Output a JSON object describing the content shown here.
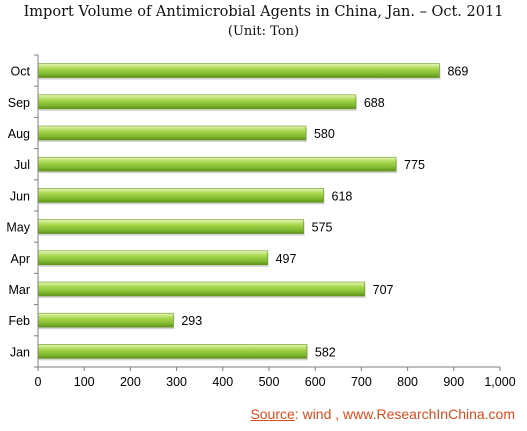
{
  "chart_data": {
    "type": "bar",
    "orientation": "horizontal",
    "title": "Import Volume of Antimicrobial Agents in China, Jan. – Oct. 2011",
    "subtitle": "(Unit: Ton)",
    "categories": [
      "Oct",
      "Sep",
      "Aug",
      "Jul",
      "Jun",
      "May",
      "Apr",
      "Mar",
      "Feb",
      "Jan"
    ],
    "values": [
      869,
      688,
      580,
      775,
      618,
      575,
      497,
      707,
      293,
      582
    ],
    "xlim": [
      0,
      1000
    ],
    "xticks": [
      "0",
      "100",
      "200",
      "300",
      "400",
      "500",
      "600",
      "700",
      "800",
      "900",
      "1,000"
    ],
    "grid": false,
    "bar_color": "#8cc63f"
  },
  "source": {
    "label": "Source",
    "text": ": wind , www.ResearchInChina.com"
  }
}
